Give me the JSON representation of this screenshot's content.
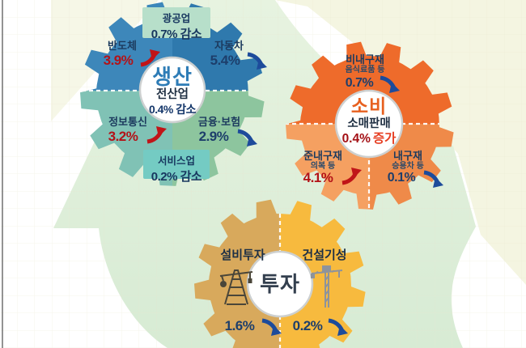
{
  "colors": {
    "production_blue": "#3d87ba",
    "production_blue_dark": "#2f79ad",
    "production_teal": "#80c2b5",
    "production_green": "#8dc59e",
    "consumption_orange": "#ee6b2b",
    "consumption_peach": "#f5a061",
    "consumption_orange_dark": "#ef8a49",
    "investment_gold": "#d8a95c",
    "investment_yellow": "#f7ba3e",
    "increase_red": "#b31217",
    "decrease_blue": "#1d4b9b"
  },
  "production": {
    "title": "생산",
    "subtitle": "전산업",
    "total_change": "0.4% 감소",
    "mining_box": {
      "label": "광공업",
      "value": "0.7% 감소"
    },
    "semiconductor": {
      "label": "반도체",
      "value": "3.9%",
      "direction": "up"
    },
    "automobile": {
      "label": "자동차",
      "value": "5.4%",
      "direction": "down"
    },
    "ict": {
      "label": "정보통신",
      "value": "3.2%",
      "direction": "up"
    },
    "finance": {
      "label": "금융·보험",
      "value": "2.9%",
      "direction": "down"
    },
    "services_box": {
      "label": "서비스업",
      "value": "0.2% 감소"
    }
  },
  "consumption": {
    "title": "소비",
    "subtitle": "소매판매",
    "total_value": "0.4%",
    "total_word": "증가",
    "nondurables": {
      "label": "비내구재",
      "sublabel": "음식료품 등",
      "value": "0.7%",
      "direction": "down"
    },
    "semidurables": {
      "label": "준내구재",
      "sublabel": "의복 등",
      "value": "4.1%",
      "direction": "up"
    },
    "durables": {
      "label": "내구재",
      "sublabel": "승용차 등",
      "value": "0.1%",
      "direction": "down"
    }
  },
  "investment": {
    "title": "투자",
    "facilities": {
      "label": "설비투자",
      "value": "1.6%",
      "direction": "down",
      "icon": "oil-derrick-icon"
    },
    "construction": {
      "label": "건설기성",
      "value": "0.2%",
      "direction": "down",
      "icon": "tower-crane-icon"
    }
  }
}
